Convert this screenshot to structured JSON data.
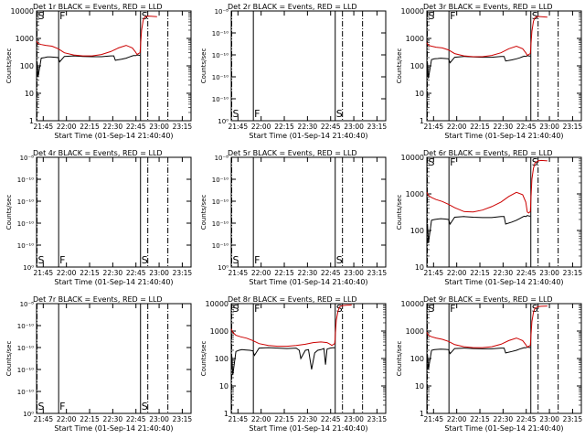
{
  "figure": {
    "background": "#ffffff",
    "colors": {
      "events": "#000000",
      "lld": "#cc0000",
      "frame": "#000000"
    },
    "xlabel": "Start Time (01-Sep-14 21:40:40)",
    "ylabel": "Counts/sec",
    "x_ticks": [
      "21:45",
      "22:00",
      "22:15",
      "22:30",
      "22:45",
      "23:00",
      "23:15"
    ],
    "x_tick_minutes": [
      4.33,
      19.33,
      34.33,
      49.33,
      64.33,
      79.33,
      94.33
    ],
    "x_range_minutes": [
      0,
      100
    ],
    "y_ticks_log": [
      "1",
      "10",
      "100",
      "1000",
      "10000"
    ],
    "y_ticks_empty": [
      "10⁰",
      "10⁻¹⁰",
      "10⁻¹⁰",
      "10⁻¹⁰",
      "10⁻¹⁰",
      "10⁻⁸"
    ],
    "markers": [
      {
        "label": "S",
        "minute": 0.3,
        "style": "dashdot"
      },
      {
        "label": "F",
        "minute": 14.3,
        "style": "solid"
      },
      {
        "label": "S",
        "minute": 67.3,
        "style": "solid"
      },
      {
        "label": "",
        "minute": 72.0,
        "style": "dashdot"
      },
      {
        "label": "",
        "minute": 85.0,
        "style": "dashdot"
      }
    ]
  },
  "chart_data": [
    {
      "panel": "det1r",
      "type": "line",
      "title": "Det 1r BLACK = Events, RED = LLD",
      "yscale": "log",
      "ylim": [
        1,
        10000
      ],
      "x_unit": "minutes after 21:40:40",
      "series": [
        {
          "color": "#000000",
          "x": [
            0,
            0.4,
            1,
            3,
            5,
            7,
            9,
            12,
            14,
            15,
            18,
            24,
            30,
            36,
            42,
            48,
            50,
            51,
            55,
            58,
            60,
            62,
            63,
            64,
            65,
            66,
            67
          ],
          "y": [
            60,
            140,
            40,
            190,
            200,
            210,
            210,
            205,
            200,
            140,
            220,
            230,
            220,
            215,
            215,
            230,
            230,
            160,
            175,
            190,
            210,
            230,
            240,
            235,
            250,
            245,
            240
          ]
        },
        {
          "color": "#cc0000",
          "x": [
            0,
            1,
            3,
            6,
            10,
            14,
            18,
            24,
            30,
            36,
            42,
            48,
            53,
            58,
            62,
            64,
            65,
            66,
            67,
            68,
            69,
            70,
            72,
            74,
            78
          ],
          "y": [
            800,
            650,
            600,
            560,
            520,
            420,
            300,
            250,
            230,
            230,
            260,
            330,
            450,
            560,
            450,
            320,
            260,
            280,
            300,
            2000,
            4500,
            6000,
            6500,
            6400,
            6200
          ]
        }
      ]
    },
    {
      "panel": "det2r",
      "type": "line",
      "title": "Det 2r BLACK = Events, RED = LLD",
      "yscale": "log",
      "series": []
    },
    {
      "panel": "det3r",
      "type": "line",
      "title": "Det 3r BLACK = Events, RED = LLD",
      "yscale": "log",
      "ylim": [
        1,
        10000
      ],
      "x_unit": "minutes after 21:40:40",
      "series": [
        {
          "color": "#000000",
          "x": [
            0,
            0.4,
            1,
            3,
            5,
            7,
            9,
            12,
            14,
            15,
            18,
            24,
            30,
            36,
            42,
            48,
            50,
            51,
            55,
            58,
            60,
            62,
            63,
            64,
            65,
            66,
            67
          ],
          "y": [
            50,
            130,
            35,
            170,
            180,
            185,
            190,
            185,
            180,
            130,
            205,
            220,
            210,
            205,
            205,
            220,
            220,
            150,
            165,
            180,
            195,
            215,
            225,
            220,
            235,
            230,
            225
          ]
        },
        {
          "color": "#cc0000",
          "x": [
            0,
            1,
            3,
            6,
            10,
            14,
            18,
            24,
            30,
            36,
            42,
            48,
            53,
            58,
            62,
            64,
            65,
            66,
            67,
            68,
            69,
            70,
            72,
            74,
            78
          ],
          "y": [
            700,
            560,
            520,
            480,
            450,
            380,
            280,
            230,
            215,
            215,
            240,
            300,
            420,
            520,
            420,
            300,
            240,
            260,
            280,
            1800,
            4200,
            5800,
            6300,
            6200,
            6000
          ]
        }
      ]
    },
    {
      "panel": "det4r",
      "type": "line",
      "title": "Det 4r BLACK = Events, RED = LLD",
      "yscale": "log",
      "series": []
    },
    {
      "panel": "det5r",
      "type": "line",
      "title": "Det 5r BLACK = Events, RED = LLD",
      "yscale": "log",
      "series": []
    },
    {
      "panel": "det6r",
      "type": "line",
      "title": "Det 6r BLACK = Events, RED = LLD",
      "yscale": "log",
      "ylim": [
        10,
        10000
      ],
      "x_unit": "minutes after 21:40:40",
      "series": [
        {
          "color": "#000000",
          "x": [
            0,
            0.4,
            1,
            3,
            5,
            7,
            9,
            12,
            14,
            15,
            18,
            24,
            30,
            36,
            42,
            48,
            50,
            51,
            55,
            58,
            60,
            62,
            63,
            64,
            65,
            66,
            67
          ],
          "y": [
            80,
            150,
            45,
            190,
            200,
            205,
            210,
            205,
            200,
            150,
            230,
            240,
            230,
            225,
            225,
            240,
            240,
            150,
            170,
            190,
            210,
            235,
            245,
            240,
            255,
            250,
            245
          ]
        },
        {
          "color": "#cc0000",
          "x": [
            0,
            1,
            3,
            6,
            10,
            14,
            18,
            24,
            30,
            36,
            42,
            48,
            53,
            58,
            62,
            64,
            65,
            66,
            67,
            68,
            69,
            70,
            72,
            74,
            78
          ],
          "y": [
            1100,
            900,
            800,
            700,
            620,
            520,
            420,
            330,
            320,
            360,
            450,
            600,
            850,
            1100,
            950,
            600,
            320,
            300,
            330,
            2500,
            5000,
            7000,
            8000,
            8200,
            8000
          ]
        }
      ]
    },
    {
      "panel": "det7r",
      "type": "line",
      "title": "Det 7r BLACK = Events, RED = LLD",
      "yscale": "log",
      "series": []
    },
    {
      "panel": "det8r",
      "type": "line",
      "title": "Det 8r BLACK = Events, RED = LLD",
      "yscale": "log",
      "ylim": [
        1,
        10000
      ],
      "x_unit": "minutes after 21:40:40",
      "series": [
        {
          "color": "#000000",
          "x": [
            0,
            0.4,
            1,
            3,
            5,
            7,
            9,
            12,
            14,
            15,
            18,
            24,
            30,
            36,
            42,
            44,
            45,
            48,
            50,
            52,
            54,
            56,
            58,
            60,
            61,
            62,
            64,
            66,
            67
          ],
          "y": [
            60,
            120,
            25,
            180,
            200,
            210,
            205,
            200,
            190,
            130,
            240,
            250,
            240,
            230,
            240,
            200,
            100,
            200,
            210,
            40,
            160,
            200,
            210,
            230,
            60,
            220,
            240,
            250,
            245
          ]
        },
        {
          "color": "#cc0000",
          "x": [
            0,
            1,
            3,
            6,
            10,
            14,
            18,
            24,
            30,
            36,
            42,
            48,
            53,
            58,
            62,
            64,
            65,
            66,
            67,
            68,
            69,
            70,
            72,
            74,
            78
          ],
          "y": [
            1200,
            900,
            700,
            620,
            550,
            450,
            350,
            300,
            280,
            280,
            300,
            330,
            380,
            400,
            380,
            330,
            300,
            320,
            350,
            2500,
            5000,
            7500,
            8500,
            8800,
            9000
          ]
        }
      ]
    },
    {
      "panel": "det9r",
      "type": "line",
      "title": "Det 9r BLACK = Events, RED = LLD",
      "yscale": "log",
      "ylim": [
        1,
        10000
      ],
      "x_unit": "minutes after 21:40:40",
      "series": [
        {
          "color": "#000000",
          "x": [
            0,
            0.4,
            1,
            3,
            5,
            7,
            9,
            12,
            14,
            15,
            18,
            24,
            30,
            36,
            42,
            48,
            50,
            51,
            55,
            58,
            60,
            62,
            63,
            64,
            65,
            66,
            67
          ],
          "y": [
            60,
            140,
            40,
            200,
            210,
            215,
            220,
            215,
            210,
            150,
            230,
            240,
            230,
            225,
            225,
            240,
            240,
            160,
            180,
            200,
            220,
            240,
            250,
            245,
            260,
            255,
            250
          ]
        },
        {
          "color": "#cc0000",
          "x": [
            0,
            1,
            3,
            6,
            10,
            14,
            18,
            24,
            30,
            36,
            42,
            48,
            53,
            58,
            62,
            64,
            65,
            66,
            67,
            68,
            69,
            70,
            72,
            74,
            78
          ],
          "y": [
            900,
            700,
            620,
            560,
            500,
            420,
            320,
            270,
            250,
            250,
            270,
            330,
            450,
            560,
            450,
            320,
            260,
            280,
            300,
            2200,
            4800,
            6800,
            7800,
            8000,
            8200
          ]
        }
      ]
    }
  ]
}
